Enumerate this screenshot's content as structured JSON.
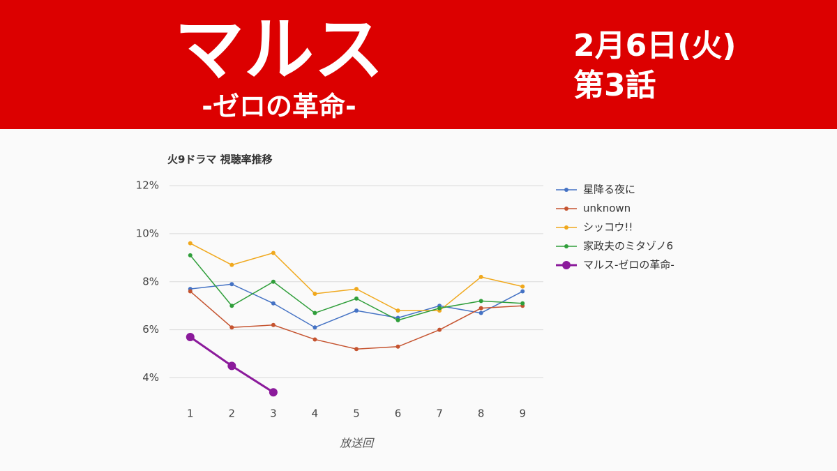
{
  "header": {
    "title": "マルス",
    "subtitle": "-ゼロの革命-",
    "date": "2月6日(火)",
    "episode": "第3話"
  },
  "chart_data": {
    "type": "line",
    "title": "火9ドラマ 視聴率推移",
    "x_label": "放送回",
    "categories": [
      "1",
      "2",
      "3",
      "4",
      "5",
      "6",
      "7",
      "8",
      "9"
    ],
    "series": [
      {
        "name": "星降る夜に",
        "color": "#4472c4",
        "linewidth": 1.5,
        "values": [
          7.7,
          7.9,
          7.1,
          6.1,
          6.8,
          6.5,
          7.0,
          6.7,
          7.6
        ]
      },
      {
        "name": "unknown",
        "color": "#c5532f",
        "linewidth": 1.5,
        "values": [
          7.6,
          6.1,
          6.2,
          5.6,
          5.2,
          5.3,
          6.0,
          6.9,
          7.0
        ]
      },
      {
        "name": "シッコウ!!",
        "color": "#f0a81c",
        "linewidth": 1.5,
        "values": [
          9.6,
          8.7,
          9.2,
          7.5,
          7.7,
          6.8,
          6.8,
          8.2,
          7.8
        ]
      },
      {
        "name": "家政夫のミタゾノ6",
        "color": "#2f9e3a",
        "linewidth": 1.5,
        "values": [
          9.1,
          7.0,
          8.0,
          6.7,
          7.3,
          6.4,
          6.9,
          7.2,
          7.1
        ]
      },
      {
        "name": "マルス-ゼロの革命-",
        "color": "#8b1a9b",
        "linewidth": 3,
        "values": [
          5.7,
          4.5,
          3.4,
          null,
          null,
          null,
          null,
          null,
          null
        ]
      }
    ],
    "ylim": [
      3,
      12
    ],
    "yticks": [
      {
        "value": 4,
        "label": "4%"
      },
      {
        "value": 6,
        "label": "6%"
      },
      {
        "value": 8,
        "label": "8%"
      },
      {
        "value": 10,
        "label": "10%"
      },
      {
        "value": 12,
        "label": "12%"
      }
    ],
    "grid": true,
    "legend": "right"
  }
}
